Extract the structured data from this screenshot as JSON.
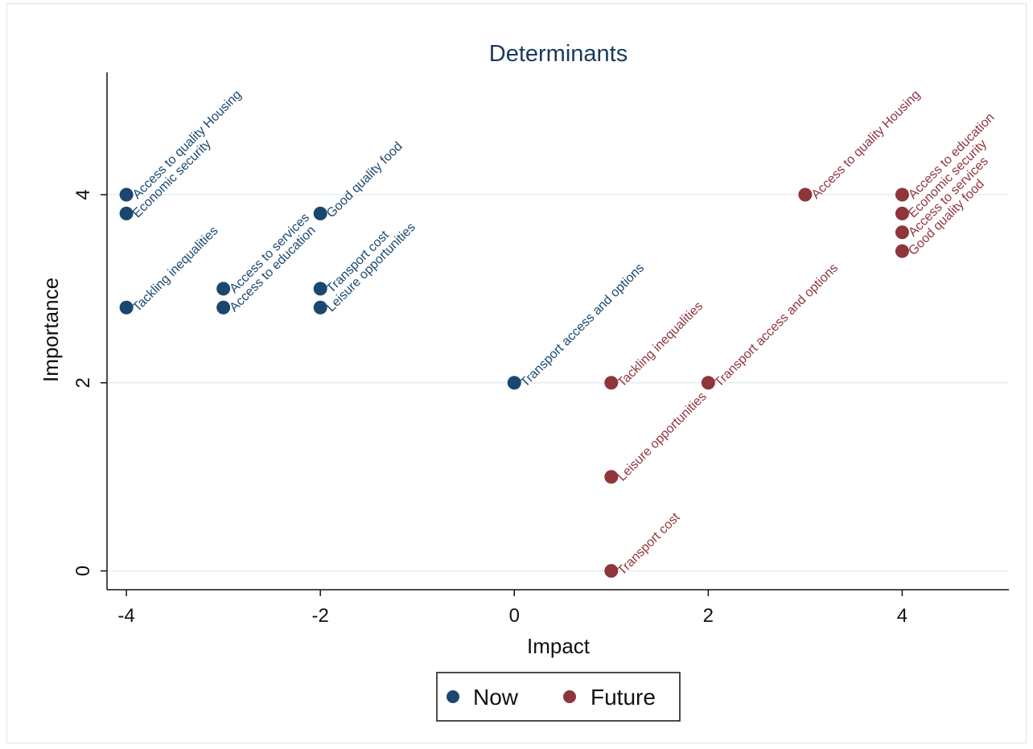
{
  "chart_data": {
    "type": "scatter",
    "title": "Determinants",
    "xlabel": "Impact",
    "ylabel": "Importance",
    "xlim": [
      -4.2,
      5.1
    ],
    "ylim": [
      -0.2,
      5.3
    ],
    "xticks": [
      -4,
      -2,
      0,
      2,
      4
    ],
    "yticks": [
      0,
      2,
      4
    ],
    "grid": "horizontal",
    "legend_position": "bottom",
    "series": [
      {
        "name": "Now",
        "color": "#1a476f",
        "points": [
          {
            "x": -4,
            "y": 4.0,
            "label": "Access to quality Housing"
          },
          {
            "x": -4,
            "y": 3.8,
            "label": "Economic security"
          },
          {
            "x": -4,
            "y": 2.8,
            "label": "Tackling inequalities"
          },
          {
            "x": -3,
            "y": 3.0,
            "label": "Access to services"
          },
          {
            "x": -3,
            "y": 2.8,
            "label": "Access to education"
          },
          {
            "x": -2,
            "y": 3.8,
            "label": "Good quality food"
          },
          {
            "x": -2,
            "y": 3.0,
            "label": "Transport cost"
          },
          {
            "x": -2,
            "y": 2.8,
            "label": "Leisure opportunities"
          },
          {
            "x": 0,
            "y": 2.0,
            "label": "Transport access and options"
          }
        ]
      },
      {
        "name": "Future",
        "color": "#90353b",
        "points": [
          {
            "x": 3,
            "y": 4.0,
            "label": "Access to quality Housing"
          },
          {
            "x": 4,
            "y": 4.0,
            "label": "Access to education"
          },
          {
            "x": 4,
            "y": 3.8,
            "label": "Economic security"
          },
          {
            "x": 4,
            "y": 3.6,
            "label": "Access to services"
          },
          {
            "x": 4,
            "y": 3.4,
            "label": "Good quality food"
          },
          {
            "x": 1,
            "y": 2.0,
            "label": "Tackling inequalities"
          },
          {
            "x": 2,
            "y": 2.0,
            "label": "Transport access and options"
          },
          {
            "x": 1,
            "y": 1.0,
            "label": "Leisure opportunities"
          },
          {
            "x": 1,
            "y": 0.0,
            "label": "Transport cost"
          }
        ]
      }
    ]
  }
}
